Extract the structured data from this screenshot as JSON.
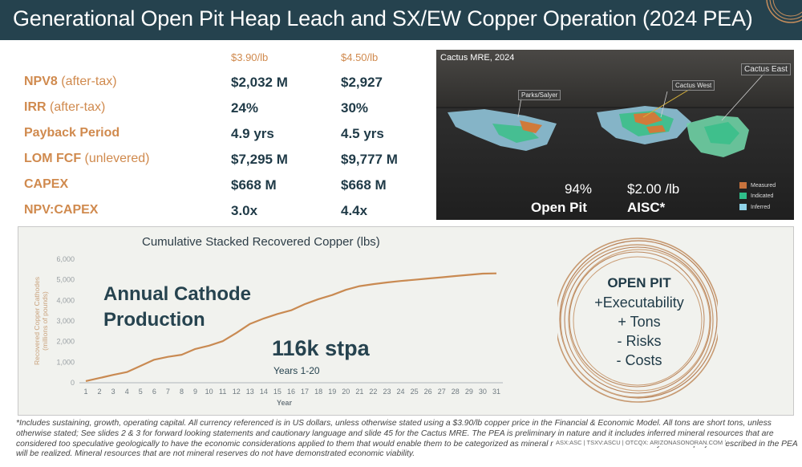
{
  "header": {
    "title": "Generational Open Pit Heap Leach and SX/EW Copper Operation (2024 PEA)"
  },
  "metrics": {
    "price_headers": [
      "$3.90/lb",
      "$4.50/lb"
    ],
    "rows": [
      {
        "name": "NPV8",
        "qualifier": " (after-tax)",
        "v1": "$2,032 M",
        "v2": "$2,927"
      },
      {
        "name": "IRR",
        "qualifier": " (after-tax)",
        "v1": "24%",
        "v2": "30%"
      },
      {
        "name": "Payback Period",
        "qualifier": "",
        "v1": "4.9 yrs",
        "v2": "4.5 yrs"
      },
      {
        "name": "LOM FCF",
        "qualifier": " (unlevered)",
        "v1": "$7,295 M",
        "v2": "$9,777 M"
      },
      {
        "name": "CAPEX",
        "qualifier": "",
        "v1": "$668 M",
        "v2": "$668 M"
      },
      {
        "name": "NPV:CAPEX",
        "qualifier": "",
        "v1": "3.0x",
        "v2": "4.4x"
      }
    ]
  },
  "mre": {
    "title": "Cactus MRE, 2024",
    "labels": {
      "parks": "Parks/Salyer",
      "cactus_west": "Cactus West",
      "cactus_east": "Cactus East"
    },
    "open_pit_pct": "94%",
    "open_pit_label": "Open Pit",
    "aisc_value": "$2.00 /lb",
    "aisc_label": "AISC*",
    "legend": [
      {
        "label": "Measured",
        "color": "#c8733d"
      },
      {
        "label": "Indicated",
        "color": "#2fbf8a"
      },
      {
        "label": "Inferred",
        "color": "#8fd3e8"
      }
    ]
  },
  "chart_data": {
    "type": "line",
    "title": "Cumulative Stacked Recovered Copper (lbs)",
    "xlabel": "Year",
    "ylabel": "Recovered Copper Cathodes (millions of pounds)",
    "x": [
      1,
      2,
      3,
      4,
      5,
      6,
      7,
      8,
      9,
      10,
      11,
      12,
      13,
      14,
      15,
      16,
      17,
      18,
      19,
      20,
      21,
      22,
      23,
      24,
      25,
      26,
      27,
      28,
      29,
      30,
      31
    ],
    "series": [
      {
        "values": [
          80,
          230,
          380,
          520,
          820,
          1120,
          1260,
          1360,
          1640,
          1800,
          2020,
          2420,
          2860,
          3120,
          3340,
          3520,
          3820,
          4060,
          4260,
          4510,
          4690,
          4790,
          4870,
          4940,
          5000,
          5060,
          5120,
          5180,
          5240,
          5300,
          5310
        ]
      }
    ],
    "ylim": [
      0,
      6000
    ],
    "yticks": [
      "0",
      "1,000",
      "2,000",
      "3,000",
      "4,000",
      "5,000",
      "6,000"
    ],
    "xticks": [
      "1",
      "2",
      "3",
      "4",
      "5",
      "6",
      "7",
      "8",
      "9",
      "10",
      "11",
      "12",
      "13",
      "14",
      "15",
      "16",
      "17",
      "18",
      "19",
      "20",
      "21",
      "22",
      "23",
      "24",
      "25",
      "26",
      "27",
      "28",
      "29",
      "30",
      "31"
    ],
    "line_color": "#c98a52",
    "grid": false
  },
  "annotations": {
    "annual_line1": "Annual Cathode",
    "annual_line2": "Production",
    "stpa": "116k stpa",
    "years": "Years 1-20"
  },
  "open_pit_box": {
    "title": "OPEN PIT",
    "lines": [
      "+Executability",
      "+ Tons",
      "- Risks",
      "- Costs"
    ]
  },
  "footnote": "*Includes sustaining, growth, operating capital. All currency referenced is in US dollars, unless otherwise stated using a $3.90/lb copper price in the Financial & Economic Model. All tons are short tons, unless otherwise stated; See slides 2 & 3 for forward looking statements and cautionary language and slide 45 for the Cactus MRE. The PEA is preliminary in nature and it includes inferred mineral resources that are considered too speculative geologically to have the economic considerations applied to them that would enable them to be categorized as mineral reserves. There is no certainty that the project described in the PEA will be realized. Mineral resources that are not mineral reserves do not have demonstrated economic viability.",
  "footer_url": "ASX:ASC | TSXV:ASCU | OTCQX: ARIZONASONORAN.COM"
}
